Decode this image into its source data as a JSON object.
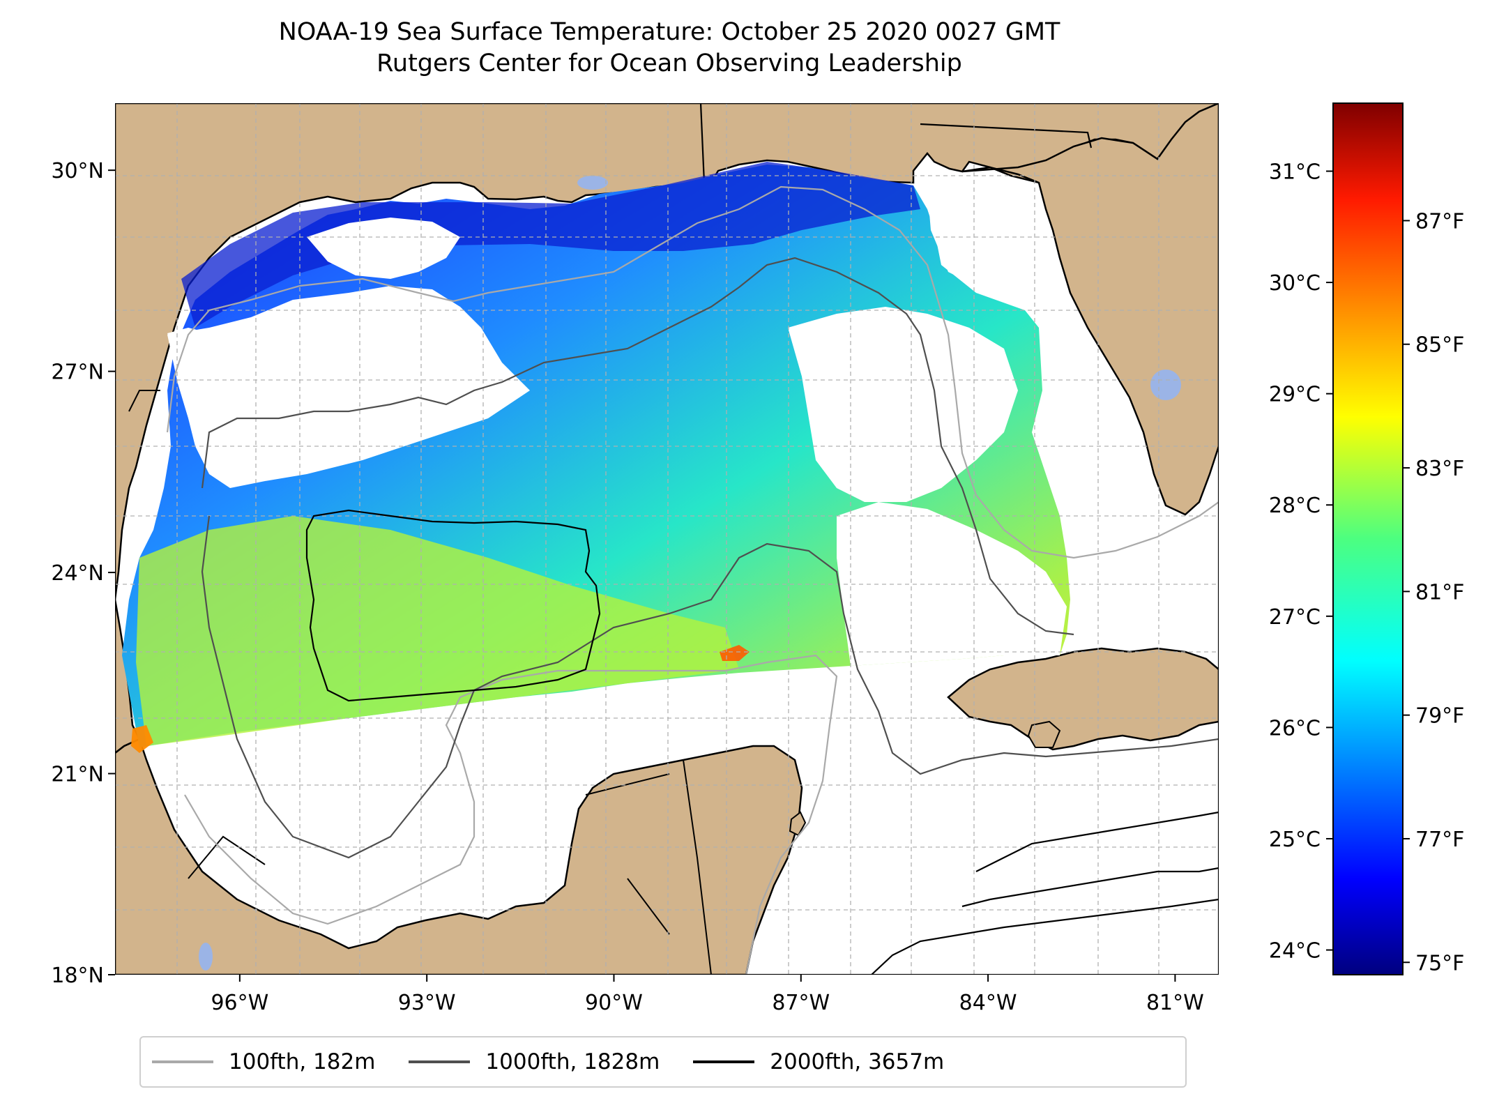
{
  "title": {
    "line1": "NOAA-19 Sea Surface Temperature: October 25 2020 0027 GMT",
    "line2": "Rutgers Center for Ocean Observing Leadership"
  },
  "map": {
    "lon_range": [
      -98.0,
      -80.3
    ],
    "lat_range": [
      18.0,
      31.0
    ],
    "lat_ticks": [
      {
        "value": 30,
        "label": "30°N"
      },
      {
        "value": 27,
        "label": "27°N"
      },
      {
        "value": 24,
        "label": "24°N"
      },
      {
        "value": 21,
        "label": "21°N"
      },
      {
        "value": 18,
        "label": "18°N"
      }
    ],
    "lon_ticks": [
      {
        "value": -96,
        "label": "96°W"
      },
      {
        "value": -93,
        "label": "93°W"
      },
      {
        "value": -90,
        "label": "90°W"
      },
      {
        "value": -87,
        "label": "87°W"
      },
      {
        "value": -84,
        "label": "84°W"
      },
      {
        "value": -81,
        "label": "81°W"
      }
    ],
    "gridlines": true,
    "land_color": "#d2b48c",
    "lake_color": "#9bb4e6"
  },
  "colorbar": {
    "colormap": "jet",
    "celsius_ticks": [
      "31°C",
      "30°C",
      "29°C",
      "28°C",
      "27°C",
      "26°C",
      "25°C",
      "24°C"
    ],
    "fahrenheit_ticks": [
      "87°F",
      "85°F",
      "83°F",
      "81°F",
      "79°F",
      "77°F",
      "75°F"
    ],
    "fahrenheit_range": [
      74.8,
      88.9
    ]
  },
  "legend": [
    {
      "label": "100fth, 182m",
      "color": "#a9a9a9"
    },
    {
      "label": "1000fth, 1828m",
      "color": "#4f4f4f"
    },
    {
      "label": "2000fth, 3657m",
      "color": "#000000"
    }
  ]
}
